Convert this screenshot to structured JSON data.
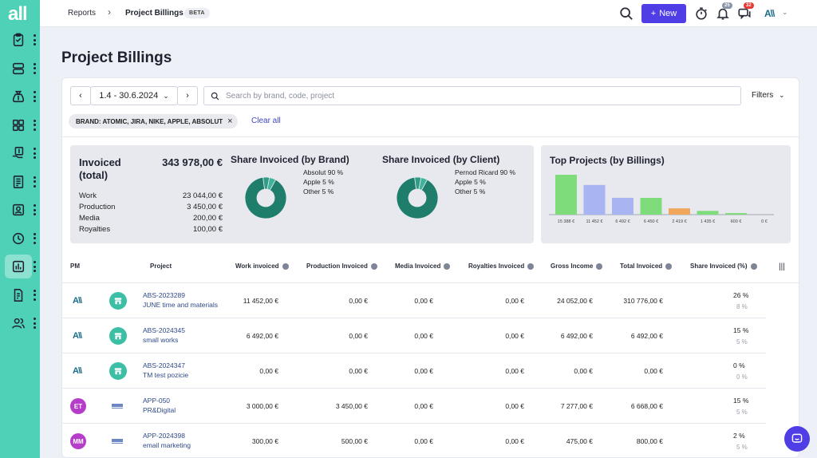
{
  "app": {
    "logo": "all"
  },
  "colors": {
    "sidebar": "#4fd1b8",
    "accent": "#4f3ee6",
    "donut": "#1f7d6c"
  },
  "sidebar": {
    "items": [
      {
        "icon": "clipboard-check-icon"
      },
      {
        "icon": "server-stack-icon"
      },
      {
        "icon": "money-bag-icon"
      },
      {
        "icon": "grid-icon"
      },
      {
        "icon": "invoice-hand-icon"
      },
      {
        "icon": "ledger-icon"
      },
      {
        "icon": "contact-card-icon"
      },
      {
        "icon": "clock-icon"
      },
      {
        "icon": "bar-chart-icon",
        "active": true
      },
      {
        "icon": "document-money-icon"
      },
      {
        "icon": "users-icon"
      }
    ]
  },
  "header": {
    "breadcrumb_root": "Reports",
    "breadcrumb_sep": "›",
    "breadcrumb_current": "Project Billings",
    "beta_label": "BETA",
    "new_label": "New",
    "notifications_count": "25",
    "messages_count": "32",
    "user_logo": "A\\\\"
  },
  "page": {
    "title": "Project Billings"
  },
  "toolbar": {
    "date_range": "1.4 - 30.6.2024",
    "search_placeholder": "Search by brand, code, project",
    "filters_label": "Filters",
    "chip_label": "BRAND: ATOMIC, JIRA, NIKE, APPLE, ABSOLUT",
    "clear_all": "Clear all"
  },
  "invoiced": {
    "title": "Invoiced (total)",
    "total": "343 978,00 €",
    "rows": [
      {
        "label": "Work",
        "value": "23 044,00 €"
      },
      {
        "label": "Production",
        "value": "3 450,00 €"
      },
      {
        "label": "Media",
        "value": "200,00 €"
      },
      {
        "label": "Royalties",
        "value": "100,00 €"
      }
    ]
  },
  "share_brand": {
    "title": "Share Invoiced (by Brand)",
    "legend": [
      "Absolut 90 %",
      "Apple 5 %",
      "Other 5 %"
    ]
  },
  "share_client": {
    "title": "Share Invoiced (by Client)",
    "legend": [
      "Pernod Ricard 90 %",
      "Apple 5 %",
      "Other 5 %"
    ]
  },
  "chart_data": [
    {
      "type": "pie",
      "labels": [
        "Absolut",
        "Apple",
        "Other"
      ],
      "values": [
        90,
        5,
        5
      ],
      "title": "Share Invoiced (by Brand)"
    },
    {
      "type": "pie",
      "labels": [
        "Pernod Ricard",
        "Apple",
        "Other"
      ],
      "values": [
        90,
        5,
        5
      ],
      "title": "Share Invoiced (by Client)"
    },
    {
      "type": "bar",
      "title": "Top Projects (by Billings)",
      "categories": [
        "15 388 €",
        "11 452 €",
        "6 492 €",
        "6 450 €",
        "2 419 €",
        "1 435 €",
        "600 €",
        "0 €"
      ],
      "values": [
        15388,
        11452,
        6492,
        6450,
        2419,
        1435,
        600,
        0
      ],
      "colors": [
        "#7fdc7a",
        "#a9b4f2",
        "#a9b4f2",
        "#7fdc7a",
        "#f0a75c",
        "#7fdc7a",
        "#7fdc7a",
        "#a9b4f2"
      ]
    }
  ],
  "table": {
    "headers": {
      "pm": "PM",
      "project": "Project",
      "work": "Work invoiced",
      "production": "Production Invoiced",
      "media": "Media Invoiced",
      "royalties": "Royalties Invoiced",
      "gross": "Gross Income",
      "total": "Total Invoiced",
      "share": "Share Invoiced (%)"
    },
    "rows": [
      {
        "pm": "A\\\\",
        "pm_type": "logo",
        "client": "store",
        "code": "ABS-2023289",
        "name": "JUNE time and materials",
        "work": "11 452,00 €",
        "production": "0,00 €",
        "media": "0,00 €",
        "royalties": "0,00 €",
        "gross": "24 052,00 €",
        "total": "310 776,00 €",
        "share": "26 %",
        "share_sub": "8 %"
      },
      {
        "pm": "A\\\\",
        "pm_type": "logo",
        "client": "store",
        "code": "ABS-2024345",
        "name": "small works",
        "work": "6 492,00 €",
        "production": "0,00 €",
        "media": "0,00 €",
        "royalties": "0,00 €",
        "gross": "6 492,00 €",
        "total": "6 492,00 €",
        "share": "15 %",
        "share_sub": "5 %"
      },
      {
        "pm": "A\\\\",
        "pm_type": "logo",
        "client": "store",
        "code": "ABS-2024347",
        "name": "TM test pozicie",
        "work": "0,00 €",
        "production": "0,00 €",
        "media": "0,00 €",
        "royalties": "0,00 €",
        "gross": "0,00 €",
        "total": "0,00 €",
        "share": "0 %",
        "share_sub": "0 %"
      },
      {
        "pm": "ET",
        "pm_type": "avatar",
        "client": "logo",
        "code": "APP-050",
        "name": "PR&Digital",
        "work": "3 000,00 €",
        "production": "3 450,00 €",
        "media": "0,00 €",
        "royalties": "0,00 €",
        "gross": "7 277,00 €",
        "total": "6 668,00 €",
        "share": "15 %",
        "share_sub": "5 %"
      },
      {
        "pm": "MM",
        "pm_type": "avatar",
        "client": "logo",
        "code": "APP-2024398",
        "name": "email marketing",
        "work": "300,00 €",
        "production": "500,00 €",
        "media": "0,00 €",
        "royalties": "0,00 €",
        "gross": "475,00 €",
        "total": "800,00 €",
        "share": "2 %",
        "share_sub": "5 %"
      }
    ]
  }
}
